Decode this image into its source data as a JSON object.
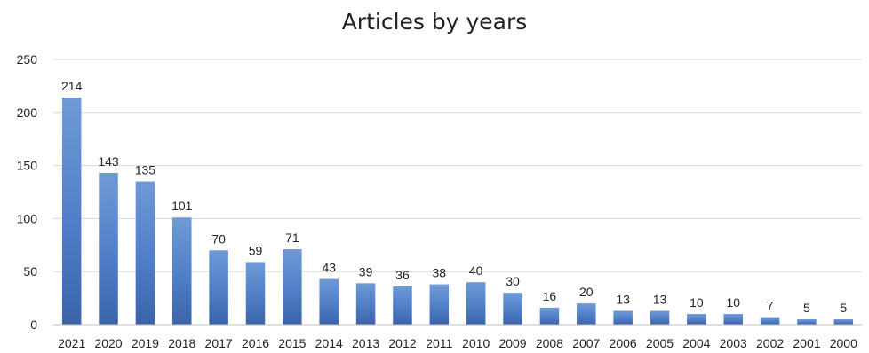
{
  "chart_data": {
    "type": "bar",
    "title": "Articles by years",
    "categories": [
      "2021",
      "2020",
      "2019",
      "2018",
      "2017",
      "2016",
      "2015",
      "2014",
      "2013",
      "2012",
      "2011",
      "2010",
      "2009",
      "2008",
      "2007",
      "2006",
      "2005",
      "2004",
      "2003",
      "2002",
      "2001",
      "2000"
    ],
    "values": [
      214,
      143,
      135,
      101,
      70,
      59,
      71,
      43,
      39,
      36,
      38,
      40,
      30,
      16,
      20,
      13,
      13,
      10,
      10,
      7,
      5,
      5
    ],
    "ylim": [
      0,
      250
    ],
    "yticks": [
      "0",
      "50",
      "100",
      "150",
      "200",
      "250"
    ],
    "grid": true,
    "colors": {
      "bar_top": "#6f9ad6",
      "bar_mid": "#4f7fc7",
      "bar_bottom": "#3a64a8",
      "grid": "#d9d9d9",
      "text": "#222222"
    }
  }
}
